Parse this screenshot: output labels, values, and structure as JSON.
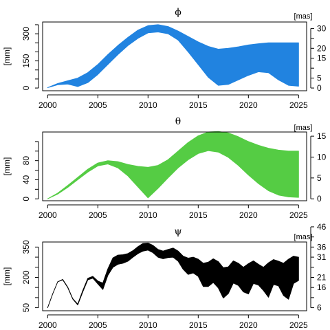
{
  "chart_data": [
    {
      "type": "area",
      "title": "ϕ",
      "xlabel": "",
      "ylabel": "[mm]",
      "ylabel_right": "[mas]",
      "color": "#2183e0",
      "xlim": [
        1999.5,
        2025.8
      ],
      "ylim": [
        -15,
        365
      ],
      "x_ticks": [
        2000,
        2005,
        2010,
        2015,
        2020,
        2025
      ],
      "y_ticks_left": [
        0,
        150,
        300
      ],
      "y_ticks_left_minor": [
        50,
        100,
        200,
        250,
        350
      ],
      "y_ticks_right": [
        0,
        5,
        15,
        20,
        30
      ],
      "y_ticks_right_minor": [
        10,
        25
      ],
      "right_scale": 0.0911,
      "x_ticks_labels": [
        "2000",
        "2005",
        "2010",
        "2015",
        "2020",
        "2025"
      ],
      "y_ticks_left_labels": [
        "0",
        "150",
        "300"
      ],
      "y_ticks_right_labels": [
        "0",
        "5",
        "15",
        "20",
        "30"
      ],
      "series": [
        {
          "name": "",
          "x": [
            2000,
            2001,
            2002,
            2003,
            2004,
            2005,
            2006,
            2007,
            2008,
            2009,
            2010,
            2011,
            2012,
            2013,
            2014,
            2015,
            2016,
            2017,
            2018,
            2019,
            2020,
            2021,
            2022,
            2023,
            2024,
            2025
          ],
          "upper": [
            2,
            25,
            40,
            55,
            85,
            130,
            185,
            235,
            280,
            320,
            345,
            350,
            340,
            315,
            285,
            255,
            230,
            215,
            220,
            228,
            238,
            245,
            250,
            250,
            250,
            250
          ],
          "lower": [
            2,
            18,
            22,
            8,
            30,
            75,
            130,
            185,
            235,
            275,
            305,
            310,
            300,
            265,
            200,
            130,
            60,
            15,
            20,
            45,
            70,
            90,
            85,
            45,
            15,
            10
          ]
        }
      ]
    },
    {
      "type": "area",
      "title": "θ",
      "xlabel": "",
      "ylabel": "[mm]",
      "ylabel_right": "[mas]",
      "color": "#55cc44",
      "xlim": [
        1999.5,
        2025.8
      ],
      "ylim": [
        -4,
        140
      ],
      "x_ticks": [
        2000,
        2005,
        2010,
        2015,
        2020,
        2025
      ],
      "y_ticks_left": [
        0,
        40,
        80
      ],
      "y_ticks_left_minor": [
        20,
        60,
        100,
        120
      ],
      "y_ticks_right": [
        0,
        5,
        10,
        15
      ],
      "y_ticks_right_minor": [],
      "right_scale": 0.1143,
      "x_ticks_labels": [
        "2000",
        "2005",
        "2010",
        "2015",
        "2020",
        "2025"
      ],
      "y_ticks_left_labels": [
        "0",
        "40",
        "80"
      ],
      "y_ticks_right_labels": [
        "0",
        "5",
        "10",
        "15"
      ],
      "series": [
        {
          "name": "",
          "x": [
            2000,
            2001,
            2002,
            2003,
            2004,
            2005,
            2006,
            2007,
            2008,
            2009,
            2010,
            2011,
            2012,
            2013,
            2014,
            2015,
            2016,
            2017,
            2018,
            2019,
            2020,
            2021,
            2022,
            2023,
            2024,
            2025
          ],
          "upper": [
            0,
            12,
            28,
            45,
            62,
            75,
            80,
            78,
            72,
            68,
            66,
            70,
            82,
            100,
            118,
            132,
            140,
            141,
            138,
            130,
            120,
            112,
            106,
            102,
            100,
            100
          ],
          "lower": [
            0,
            10,
            24,
            40,
            56,
            69,
            73,
            65,
            48,
            25,
            2,
            22,
            44,
            65,
            82,
            95,
            101,
            98,
            87,
            70,
            50,
            32,
            17,
            8,
            4,
            3
          ]
        }
      ]
    },
    {
      "type": "area",
      "title": "ψ",
      "xlabel": "",
      "ylabel": "[mm]",
      "ylabel_right": "[mas]",
      "color": "#000000",
      "xlim": [
        1999.5,
        2025.8
      ],
      "ylim": [
        35,
        375
      ],
      "x_ticks": [
        2000,
        2005,
        2010,
        2015,
        2020,
        2025
      ],
      "y_ticks_left": [
        50,
        200,
        350
      ],
      "y_ticks_left_minor": [
        100,
        150,
        250,
        300
      ],
      "y_ticks_right": [
        6,
        16,
        21,
        31,
        36,
        46
      ],
      "y_ticks_right_minor": [
        11,
        26,
        41
      ],
      "right_scale": 0.1,
      "right_offset": 1,
      "x_ticks_labels": [
        "2000",
        "2005",
        "2010",
        "2015",
        "2020",
        "2025"
      ],
      "y_ticks_left_labels": [
        "50",
        "200",
        "350"
      ],
      "y_ticks_right_labels": [
        "6",
        "16",
        "21",
        "31",
        "36",
        "46"
      ],
      "series": [
        {
          "name": "",
          "x": [
            2000,
            2000.5,
            2001,
            2001.5,
            2002,
            2002.5,
            2003,
            2003.5,
            2004,
            2004.5,
            2005,
            2005.5,
            2006,
            2006.5,
            2007,
            2007.5,
            2008,
            2008.5,
            2009,
            2009.5,
            2010,
            2010.5,
            2011,
            2011.5,
            2012,
            2012.5,
            2013,
            2013.5,
            2014,
            2014.5,
            2015,
            2015.5,
            2016,
            2016.5,
            2017,
            2017.5,
            2018,
            2018.5,
            2019,
            2019.5,
            2020,
            2020.5,
            2021,
            2021.5,
            2022,
            2022.5,
            2023,
            2023.5,
            2024,
            2024.5,
            2025
          ],
          "upper": [
            50,
            118,
            178,
            190,
            152,
            95,
            68,
            135,
            195,
            205,
            182,
            172,
            242,
            296,
            310,
            312,
            318,
            332,
            352,
            368,
            370,
            358,
            338,
            330,
            338,
            345,
            330,
            305,
            295,
            300,
            290,
            270,
            275,
            292,
            278,
            248,
            252,
            282,
            270,
            250,
            268,
            282,
            265,
            250,
            272,
            288,
            280,
            270,
            290,
            305,
            300
          ],
          "lower": [
            50,
            118,
            178,
            188,
            150,
            93,
            64,
            128,
            188,
            196,
            168,
            140,
            210,
            250,
            265,
            270,
            280,
            300,
            318,
            330,
            335,
            322,
            300,
            292,
            298,
            300,
            280,
            240,
            215,
            222,
            205,
            155,
            155,
            175,
            148,
            98,
            120,
            172,
            160,
            128,
            118,
            170,
            162,
            135,
            102,
            165,
            158,
            110,
            92,
            170,
            185
          ]
        }
      ]
    }
  ]
}
